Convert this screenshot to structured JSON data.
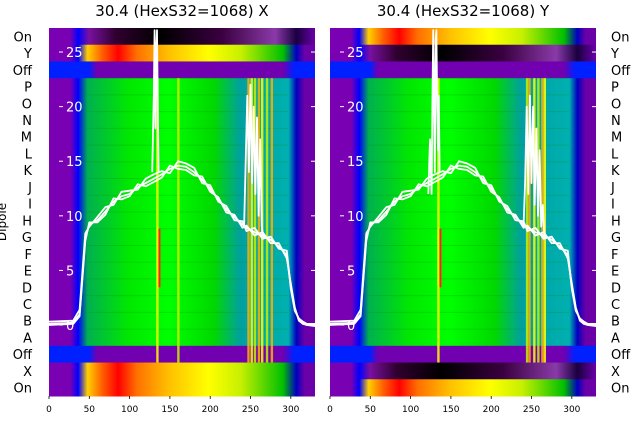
{
  "chart_data": {
    "type": "heatmap",
    "rows_left": [
      "On",
      "Y",
      "Off",
      "P",
      "O",
      "N",
      "M",
      "L",
      "K",
      "J",
      "I",
      "H",
      "G",
      "F",
      "E",
      "D",
      "C",
      "B",
      "A",
      "Off",
      "X",
      "On"
    ],
    "rows_right": [
      "On",
      "Y",
      "Off",
      "P",
      "O",
      "N",
      "M",
      "L",
      "K",
      "J",
      "I",
      "H",
      "G",
      "F",
      "E",
      "D",
      "C",
      "B",
      "A",
      "Off",
      "X",
      "On"
    ],
    "ylabel": "Dipole",
    "x": {
      "ticks": [
        0,
        50,
        100,
        150,
        200,
        250,
        300
      ],
      "lim": [
        0,
        330
      ]
    },
    "overlay_y": {
      "ticks": [
        0,
        5,
        10,
        15,
        20,
        25
      ],
      "lim": [
        -6.5,
        27.2
      ]
    },
    "colormap": [
      "#ffffff",
      "#000000",
      "#6a00a8",
      "#0000ff",
      "#0090ff",
      "#00b0b0",
      "#00c000",
      "#00ff00",
      "#a0f000",
      "#ffff00",
      "#ffb000",
      "#ff5000",
      "#ff0000"
    ],
    "panels": [
      {
        "title": "30.4 (HexS32=1068) X",
        "heat": {
          "stripes_x": [
            134.5,
            160.5,
            247.5,
            251.5,
            255.5,
            260.5,
            264.5,
            270.5,
            276.5
          ],
          "top_row_color": "#111111",
          "cross_row_color": "#ffb000"
        },
        "series": [
          {
            "x": [
              0,
              30,
              38,
              45,
              50,
              60,
              70,
              80,
              90,
              100,
              110,
              120,
              130,
              140,
              150,
              160,
              170,
              180,
              190,
              200,
              210,
              220,
              230,
              240,
              245,
              255,
              265,
              275,
              285,
              295,
              300,
              305,
              310,
              315,
              320,
              330
            ],
            "y": [
              0.1,
              0.2,
              1.0,
              8.0,
              9.2,
              9.6,
              10.4,
              11.3,
              11.8,
              12.0,
              12.6,
              13.0,
              13.4,
              13.8,
              14.3,
              14.6,
              14.5,
              14.0,
              13.3,
              12.5,
              11.5,
              10.6,
              9.9,
              9.2,
              8.9,
              8.5,
              8.2,
              7.8,
              7.2,
              6.4,
              3.5,
              1.5,
              0.5,
              0.2,
              0.0,
              0.0
            ]
          },
          {
            "x": [
              0,
              30,
              38,
              45,
              50,
              60,
              70,
              80,
              90,
              100,
              110,
              120,
              130,
              140,
              150,
              160,
              170,
              180,
              190,
              200,
              210,
              220,
              230,
              240,
              245,
              255,
              265,
              275,
              285,
              295,
              300,
              305,
              310,
              315,
              320,
              330
            ],
            "y": [
              0.3,
              0.4,
              1.4,
              8.4,
              9.0,
              9.9,
              10.8,
              11.0,
              12.2,
              12.3,
              12.4,
              13.4,
              13.8,
              14.1,
              13.9,
              15.0,
              14.8,
              14.4,
              13.0,
              12.8,
              11.3,
              10.9,
              9.6,
              9.5,
              8.6,
              8.9,
              7.9,
              8.1,
              7.0,
              6.8,
              3.3,
              1.3,
              0.6,
              0.3,
              0.1,
              0.1
            ]
          },
          {
            "x": [
              0,
              30,
              38,
              45,
              50,
              60,
              70,
              80,
              90,
              100,
              110,
              120,
              130,
              140,
              150,
              160,
              170,
              180,
              190,
              200,
              210,
              220,
              230,
              240,
              245,
              255,
              265,
              275,
              285,
              295,
              300,
              305,
              310,
              315,
              320,
              330
            ],
            "y": [
              0.0,
              0.1,
              0.8,
              7.7,
              9.4,
              9.4,
              10.1,
              11.6,
              11.5,
              11.8,
              12.9,
              12.7,
              13.1,
              13.5,
              14.6,
              14.3,
              14.2,
              13.7,
              13.6,
              12.2,
              11.7,
              10.3,
              10.1,
              8.9,
              9.1,
              8.2,
              8.5,
              7.5,
              7.5,
              6.1,
              3.8,
              1.6,
              0.4,
              0.1,
              0.0,
              -0.1
            ]
          },
          {
            "x": [
              128,
              130,
              131,
              132,
              133,
              134,
              135,
              136
            ],
            "y": [
              14.0,
              21.0,
              27.0,
              18.0,
              25.0,
              27.0,
              20.0,
              14.0
            ]
          },
          {
            "x": [
              242,
              244,
              246,
              248,
              250,
              252,
              254,
              256,
              258,
              260,
              262,
              264,
              266
            ],
            "y": [
              9.0,
              15.0,
              21.0,
              14.0,
              22.0,
              13.0,
              20.0,
              12.0,
              19.0,
              10.0,
              17.0,
              9.0,
              8.0
            ]
          }
        ]
      },
      {
        "title": "30.4 (HexS32=1068) Y",
        "heat": {
          "stripes_x": [
            134.5,
            244.5,
            247.5,
            253.5,
            258.5,
            263.5,
            266.5
          ],
          "top_row_color": "#ffb000",
          "cross_row_color": "#111111"
        },
        "series": [
          {
            "x": [
              0,
              30,
              38,
              45,
              50,
              60,
              70,
              80,
              90,
              100,
              110,
              120,
              130,
              140,
              150,
              160,
              170,
              180,
              190,
              200,
              210,
              220,
              230,
              240,
              245,
              255,
              265,
              275,
              285,
              295,
              300,
              305,
              310,
              315,
              320,
              330
            ],
            "y": [
              0.1,
              0.2,
              1.0,
              8.0,
              9.2,
              9.6,
              10.4,
              11.3,
              11.8,
              12.0,
              12.6,
              13.0,
              13.4,
              13.8,
              14.3,
              14.6,
              14.5,
              14.0,
              13.3,
              12.5,
              11.5,
              10.6,
              9.9,
              9.2,
              8.9,
              8.5,
              8.2,
              7.8,
              7.2,
              6.4,
              3.5,
              1.5,
              0.5,
              0.2,
              0.0,
              0.0
            ]
          },
          {
            "x": [
              0,
              30,
              38,
              45,
              50,
              60,
              70,
              80,
              90,
              100,
              110,
              120,
              130,
              140,
              150,
              160,
              170,
              180,
              190,
              200,
              210,
              220,
              230,
              240,
              245,
              255,
              265,
              275,
              285,
              295,
              300,
              305,
              310,
              315,
              320,
              330
            ],
            "y": [
              0.3,
              0.4,
              1.4,
              8.4,
              9.0,
              9.9,
              10.8,
              11.0,
              12.2,
              12.3,
              12.4,
              13.4,
              13.8,
              14.1,
              13.9,
              15.0,
              14.8,
              14.4,
              13.0,
              12.8,
              11.3,
              10.9,
              9.6,
              9.5,
              8.6,
              8.9,
              7.9,
              8.1,
              7.0,
              6.8,
              3.3,
              1.3,
              0.6,
              0.3,
              0.1,
              0.1
            ]
          },
          {
            "x": [
              0,
              30,
              38,
              45,
              50,
              60,
              70,
              80,
              90,
              100,
              110,
              120,
              130,
              140,
              150,
              160,
              170,
              180,
              190,
              200,
              210,
              220,
              230,
              240,
              245,
              255,
              265,
              275,
              285,
              295,
              300,
              305,
              310,
              315,
              320,
              330
            ],
            "y": [
              0.0,
              0.1,
              0.8,
              7.7,
              9.4,
              9.4,
              10.1,
              11.6,
              11.5,
              11.8,
              12.9,
              12.7,
              13.1,
              13.5,
              14.6,
              14.3,
              14.2,
              13.7,
              13.6,
              12.2,
              11.7,
              10.3,
              10.1,
              8.9,
              9.1,
              8.2,
              8.5,
              7.5,
              7.5,
              6.1,
              3.8,
              1.6,
              0.4,
              0.1,
              0.0,
              -0.1
            ]
          },
          {
            "x": [
              122,
              124,
              126,
              127,
              128,
              130,
              131,
              132,
              133,
              134,
              135,
              136
            ],
            "y": [
              12.0,
              17.0,
              12.0,
              20.0,
              27.0,
              14.0,
              26.0,
              27.0,
              20.0,
              16.0,
              21.0,
              14.0
            ]
          },
          {
            "x": [
              240,
              242,
              244,
              246,
              248,
              250,
              252,
              254,
              256,
              258,
              260,
              262,
              264,
              266
            ],
            "y": [
              9.0,
              13.0,
              20.0,
              12.0,
              21.0,
              13.0,
              20.0,
              11.0,
              18.0,
              10.0,
              16.0,
              9.0,
              11.0,
              8.0
            ]
          }
        ]
      }
    ]
  }
}
